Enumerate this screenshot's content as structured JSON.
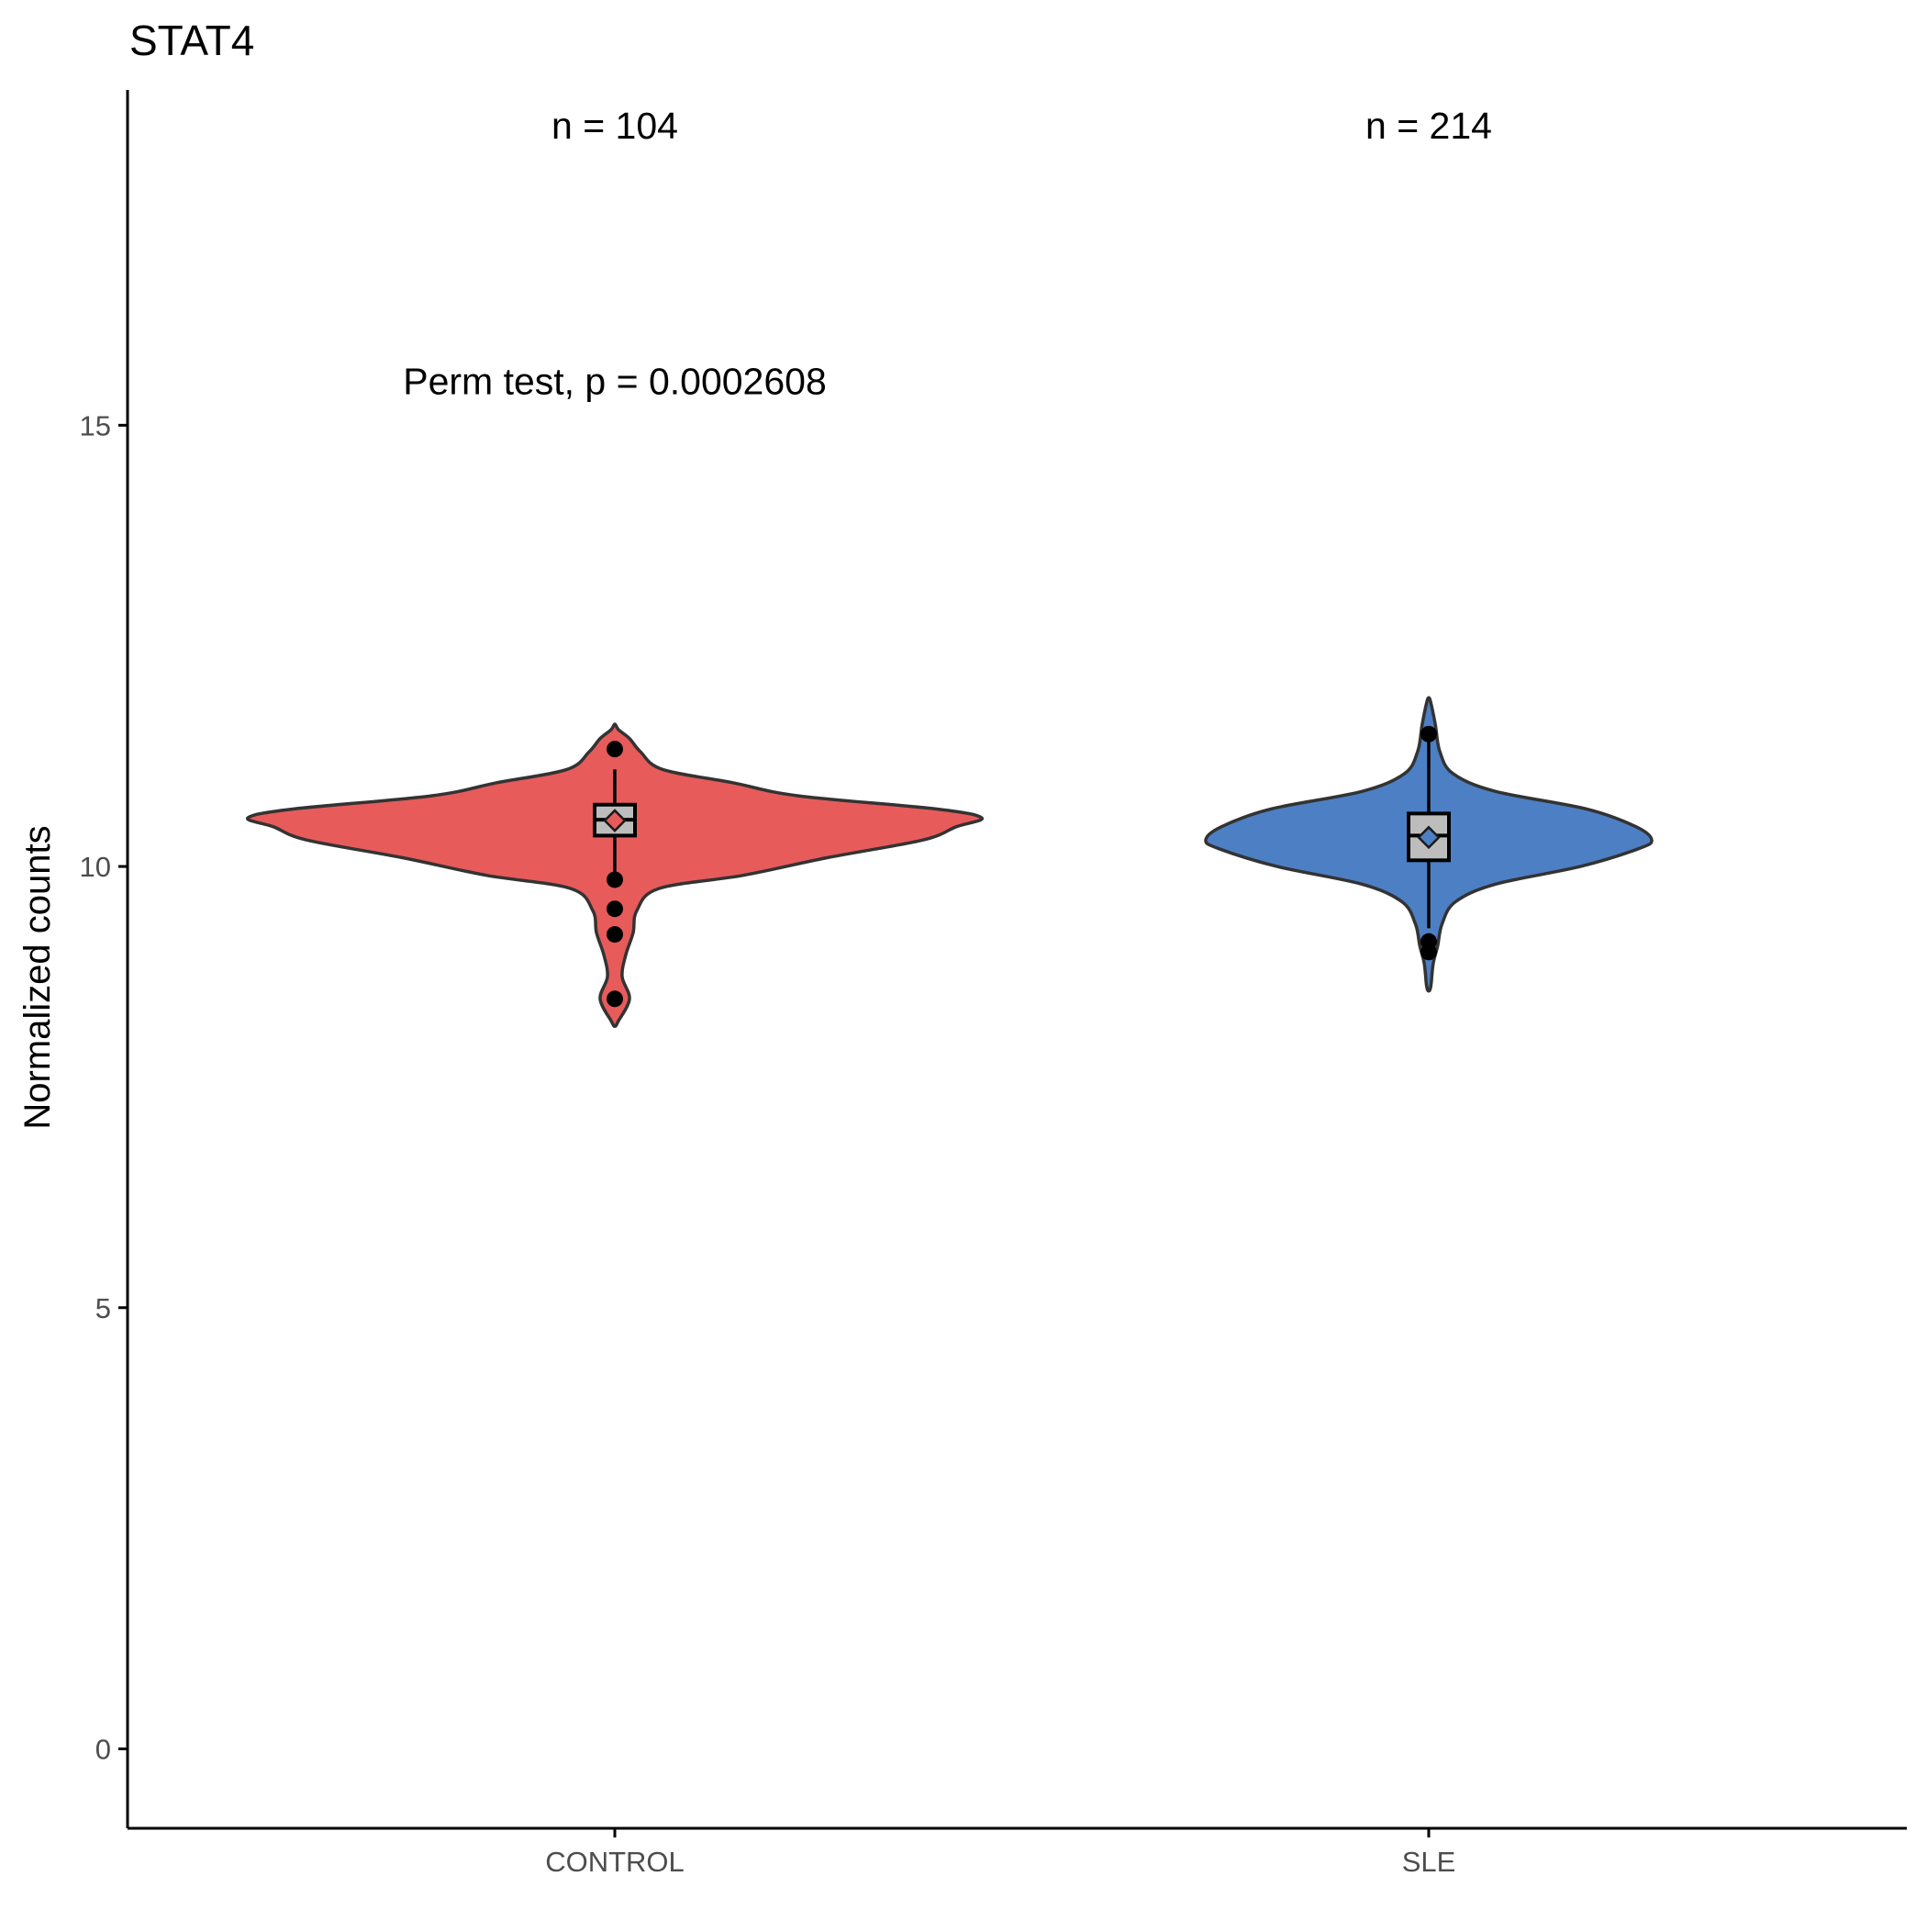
{
  "chart_data": {
    "type": "violin",
    "title": "STAT4",
    "xlabel": "",
    "ylabel": "Normalized counts",
    "ylim": [
      -0.9,
      18.8
    ],
    "yticks": [
      0,
      5,
      10,
      15
    ],
    "grid": false,
    "legend": "none",
    "categories": [
      "CONTROL",
      "SLE"
    ],
    "annotations": {
      "counts": [
        "n = 104",
        "n = 214"
      ],
      "test": "Perm test, p = 0.0002608",
      "test_y": 15.5
    },
    "series": [
      {
        "category": "CONTROL",
        "color": "#e85b5b",
        "median": 10.53,
        "q1": 10.35,
        "q3": 10.7,
        "whisker_low": 9.9,
        "whisker_high": 11.1,
        "mean": 10.52,
        "outliers": [
          11.33,
          9.85,
          9.52,
          9.23,
          8.5
        ],
        "density": [
          [
            8.25,
            0.01
          ],
          [
            8.5,
            0.04
          ],
          [
            8.75,
            0.02
          ],
          [
            9.0,
            0.03
          ],
          [
            9.25,
            0.05
          ],
          [
            9.5,
            0.06
          ],
          [
            9.75,
            0.12
          ],
          [
            9.9,
            0.35
          ],
          [
            10.1,
            0.58
          ],
          [
            10.3,
            0.84
          ],
          [
            10.45,
            0.93
          ],
          [
            10.55,
            1.0
          ],
          [
            10.65,
            0.88
          ],
          [
            10.8,
            0.5
          ],
          [
            10.95,
            0.32
          ],
          [
            11.1,
            0.13
          ],
          [
            11.3,
            0.07
          ],
          [
            11.45,
            0.04
          ],
          [
            11.55,
            0.01
          ]
        ]
      },
      {
        "category": "SLE",
        "color": "#4d7fc4",
        "median": 10.35,
        "q1": 10.07,
        "q3": 10.6,
        "whisker_low": 9.3,
        "whisker_high": 11.45,
        "mean": 10.33,
        "outliers": [
          11.5,
          9.15,
          9.03
        ],
        "density": [
          [
            8.65,
            0.01
          ],
          [
            8.9,
            0.02
          ],
          [
            9.1,
            0.04
          ],
          [
            9.35,
            0.06
          ],
          [
            9.6,
            0.12
          ],
          [
            9.8,
            0.3
          ],
          [
            10.0,
            0.68
          ],
          [
            10.2,
            0.94
          ],
          [
            10.3,
            1.0
          ],
          [
            10.45,
            0.93
          ],
          [
            10.65,
            0.71
          ],
          [
            10.85,
            0.3
          ],
          [
            11.05,
            0.11
          ],
          [
            11.3,
            0.05
          ],
          [
            11.6,
            0.03
          ],
          [
            11.85,
            0.01
          ]
        ]
      }
    ]
  }
}
